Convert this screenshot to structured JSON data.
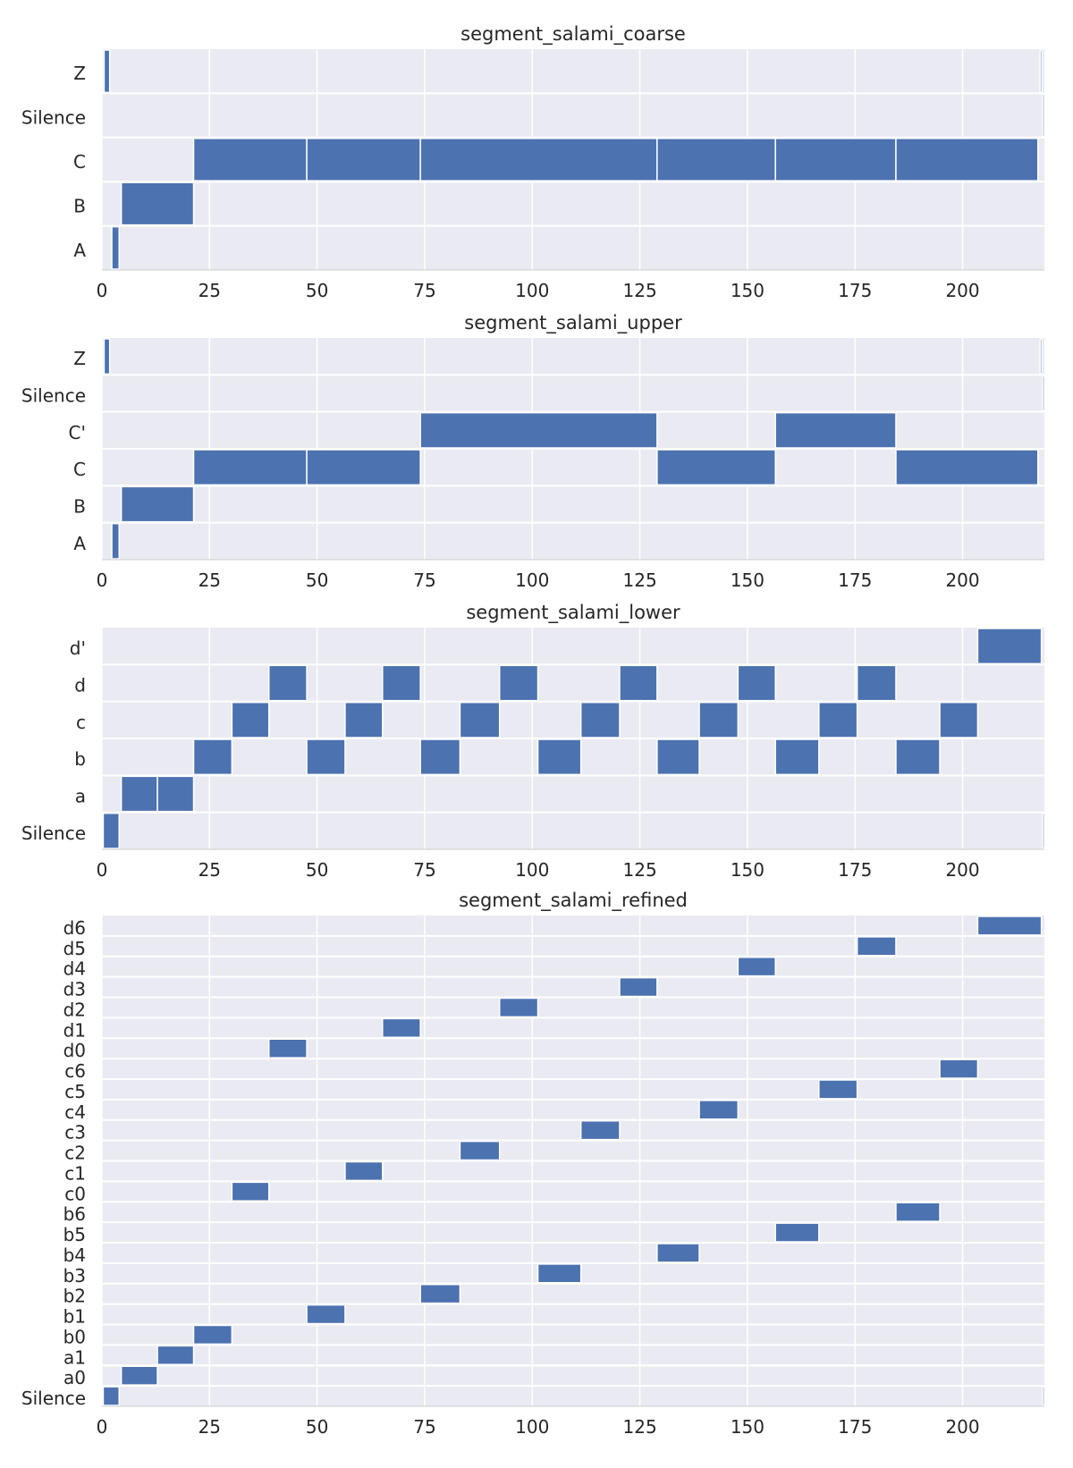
{
  "chart_data": [
    {
      "type": "segment-timeline",
      "title": "segment_salami_coarse",
      "xlim": [
        0,
        219
      ],
      "xticks": [
        0,
        25,
        50,
        75,
        100,
        125,
        150,
        175,
        200
      ],
      "grid": true,
      "bar_color": "#4c72b0",
      "labels": [
        "Z",
        "Silence",
        "C",
        "B",
        "A"
      ],
      "segments": [
        {
          "label": "Z",
          "start": 0.5,
          "end": 1.8
        },
        {
          "label": "Z",
          "start": 218.0,
          "end": 218.4
        },
        {
          "label": "Silence",
          "start": 218.6,
          "end": 219.0
        },
        {
          "label": "C",
          "start": 21.3,
          "end": 47.6
        },
        {
          "label": "C",
          "start": 47.6,
          "end": 74.0
        },
        {
          "label": "C",
          "start": 74.0,
          "end": 129.0
        },
        {
          "label": "C",
          "start": 129.0,
          "end": 156.5
        },
        {
          "label": "C",
          "start": 156.5,
          "end": 184.5
        },
        {
          "label": "C",
          "start": 184.5,
          "end": 217.5
        },
        {
          "label": "B",
          "start": 4.5,
          "end": 21.3
        },
        {
          "label": "A",
          "start": 2.3,
          "end": 4.0
        }
      ]
    },
    {
      "type": "segment-timeline",
      "title": "segment_salami_upper",
      "xlim": [
        0,
        219
      ],
      "xticks": [
        0,
        25,
        50,
        75,
        100,
        125,
        150,
        175,
        200
      ],
      "grid": true,
      "bar_color": "#4c72b0",
      "labels": [
        "Z",
        "Silence",
        "C'",
        "C",
        "B",
        "A"
      ],
      "segments": [
        {
          "label": "Z",
          "start": 0.5,
          "end": 1.8
        },
        {
          "label": "Z",
          "start": 218.0,
          "end": 218.4
        },
        {
          "label": "Silence",
          "start": 218.6,
          "end": 219.0
        },
        {
          "label": "C'",
          "start": 74.0,
          "end": 129.0
        },
        {
          "label": "C'",
          "start": 156.5,
          "end": 184.5
        },
        {
          "label": "C",
          "start": 21.3,
          "end": 47.6
        },
        {
          "label": "C",
          "start": 47.6,
          "end": 74.0
        },
        {
          "label": "C",
          "start": 129.0,
          "end": 156.5
        },
        {
          "label": "C",
          "start": 184.5,
          "end": 217.5
        },
        {
          "label": "B",
          "start": 4.5,
          "end": 21.3
        },
        {
          "label": "A",
          "start": 2.3,
          "end": 4.0
        }
      ]
    },
    {
      "type": "segment-timeline",
      "title": "segment_salami_lower",
      "xlim": [
        0,
        219
      ],
      "xticks": [
        0,
        25,
        50,
        75,
        100,
        125,
        150,
        175,
        200
      ],
      "grid": true,
      "bar_color": "#4c72b0",
      "labels": [
        "d'",
        "d",
        "c",
        "b",
        "a",
        "Silence"
      ],
      "segments": [
        {
          "label": "d'",
          "start": 203.5,
          "end": 218.3
        },
        {
          "label": "d",
          "start": 38.8,
          "end": 47.6
        },
        {
          "label": "d",
          "start": 65.2,
          "end": 74.0
        },
        {
          "label": "d",
          "start": 92.4,
          "end": 101.3
        },
        {
          "label": "d",
          "start": 120.3,
          "end": 129.0
        },
        {
          "label": "d",
          "start": 147.8,
          "end": 156.5
        },
        {
          "label": "d",
          "start": 175.5,
          "end": 184.5
        },
        {
          "label": "c",
          "start": 30.2,
          "end": 38.8
        },
        {
          "label": "c",
          "start": 56.5,
          "end": 65.2
        },
        {
          "label": "c",
          "start": 83.2,
          "end": 92.4
        },
        {
          "label": "c",
          "start": 111.3,
          "end": 120.3
        },
        {
          "label": "c",
          "start": 138.8,
          "end": 147.8
        },
        {
          "label": "c",
          "start": 166.6,
          "end": 175.5
        },
        {
          "label": "c",
          "start": 194.7,
          "end": 203.5
        },
        {
          "label": "b",
          "start": 21.3,
          "end": 30.2
        },
        {
          "label": "b",
          "start": 47.6,
          "end": 56.5
        },
        {
          "label": "b",
          "start": 74.0,
          "end": 83.2
        },
        {
          "label": "b",
          "start": 101.3,
          "end": 111.3
        },
        {
          "label": "b",
          "start": 129.0,
          "end": 138.8
        },
        {
          "label": "b",
          "start": 156.5,
          "end": 166.6
        },
        {
          "label": "b",
          "start": 184.5,
          "end": 194.7
        },
        {
          "label": "a",
          "start": 4.5,
          "end": 12.9
        },
        {
          "label": "a",
          "start": 12.9,
          "end": 21.3
        },
        {
          "label": "Silence",
          "start": 0.3,
          "end": 4.0
        },
        {
          "label": "Silence",
          "start": 218.6,
          "end": 219.0
        }
      ]
    },
    {
      "type": "segment-timeline",
      "title": "segment_salami_refined",
      "xlim": [
        0,
        219
      ],
      "xticks": [
        0,
        25,
        50,
        75,
        100,
        125,
        150,
        175,
        200
      ],
      "grid": true,
      "bar_color": "#4c72b0",
      "labels": [
        "d6",
        "d5",
        "d4",
        "d3",
        "d2",
        "d1",
        "d0",
        "c6",
        "c5",
        "c4",
        "c3",
        "c2",
        "c1",
        "c0",
        "b6",
        "b5",
        "b4",
        "b3",
        "b2",
        "b1",
        "b0",
        "a1",
        "a0",
        "Silence"
      ],
      "segments": [
        {
          "label": "d6",
          "start": 203.5,
          "end": 218.3
        },
        {
          "label": "d5",
          "start": 175.5,
          "end": 184.5
        },
        {
          "label": "d4",
          "start": 147.8,
          "end": 156.5
        },
        {
          "label": "d3",
          "start": 120.3,
          "end": 129.0
        },
        {
          "label": "d2",
          "start": 92.4,
          "end": 101.3
        },
        {
          "label": "d1",
          "start": 65.2,
          "end": 74.0
        },
        {
          "label": "d0",
          "start": 38.8,
          "end": 47.6
        },
        {
          "label": "c6",
          "start": 194.7,
          "end": 203.5
        },
        {
          "label": "c5",
          "start": 166.6,
          "end": 175.5
        },
        {
          "label": "c4",
          "start": 138.8,
          "end": 147.8
        },
        {
          "label": "c3",
          "start": 111.3,
          "end": 120.3
        },
        {
          "label": "c2",
          "start": 83.2,
          "end": 92.4
        },
        {
          "label": "c1",
          "start": 56.5,
          "end": 65.2
        },
        {
          "label": "c0",
          "start": 30.2,
          "end": 38.8
        },
        {
          "label": "b6",
          "start": 184.5,
          "end": 194.7
        },
        {
          "label": "b5",
          "start": 156.5,
          "end": 166.6
        },
        {
          "label": "b4",
          "start": 129.0,
          "end": 138.8
        },
        {
          "label": "b3",
          "start": 101.3,
          "end": 111.3
        },
        {
          "label": "b2",
          "start": 74.0,
          "end": 83.2
        },
        {
          "label": "b1",
          "start": 47.6,
          "end": 56.5
        },
        {
          "label": "b0",
          "start": 21.3,
          "end": 30.2
        },
        {
          "label": "a1",
          "start": 12.9,
          "end": 21.3
        },
        {
          "label": "a0",
          "start": 4.5,
          "end": 12.9
        },
        {
          "label": "Silence",
          "start": 0.3,
          "end": 4.0
        },
        {
          "label": "Silence",
          "start": 218.6,
          "end": 219.0
        }
      ]
    }
  ]
}
